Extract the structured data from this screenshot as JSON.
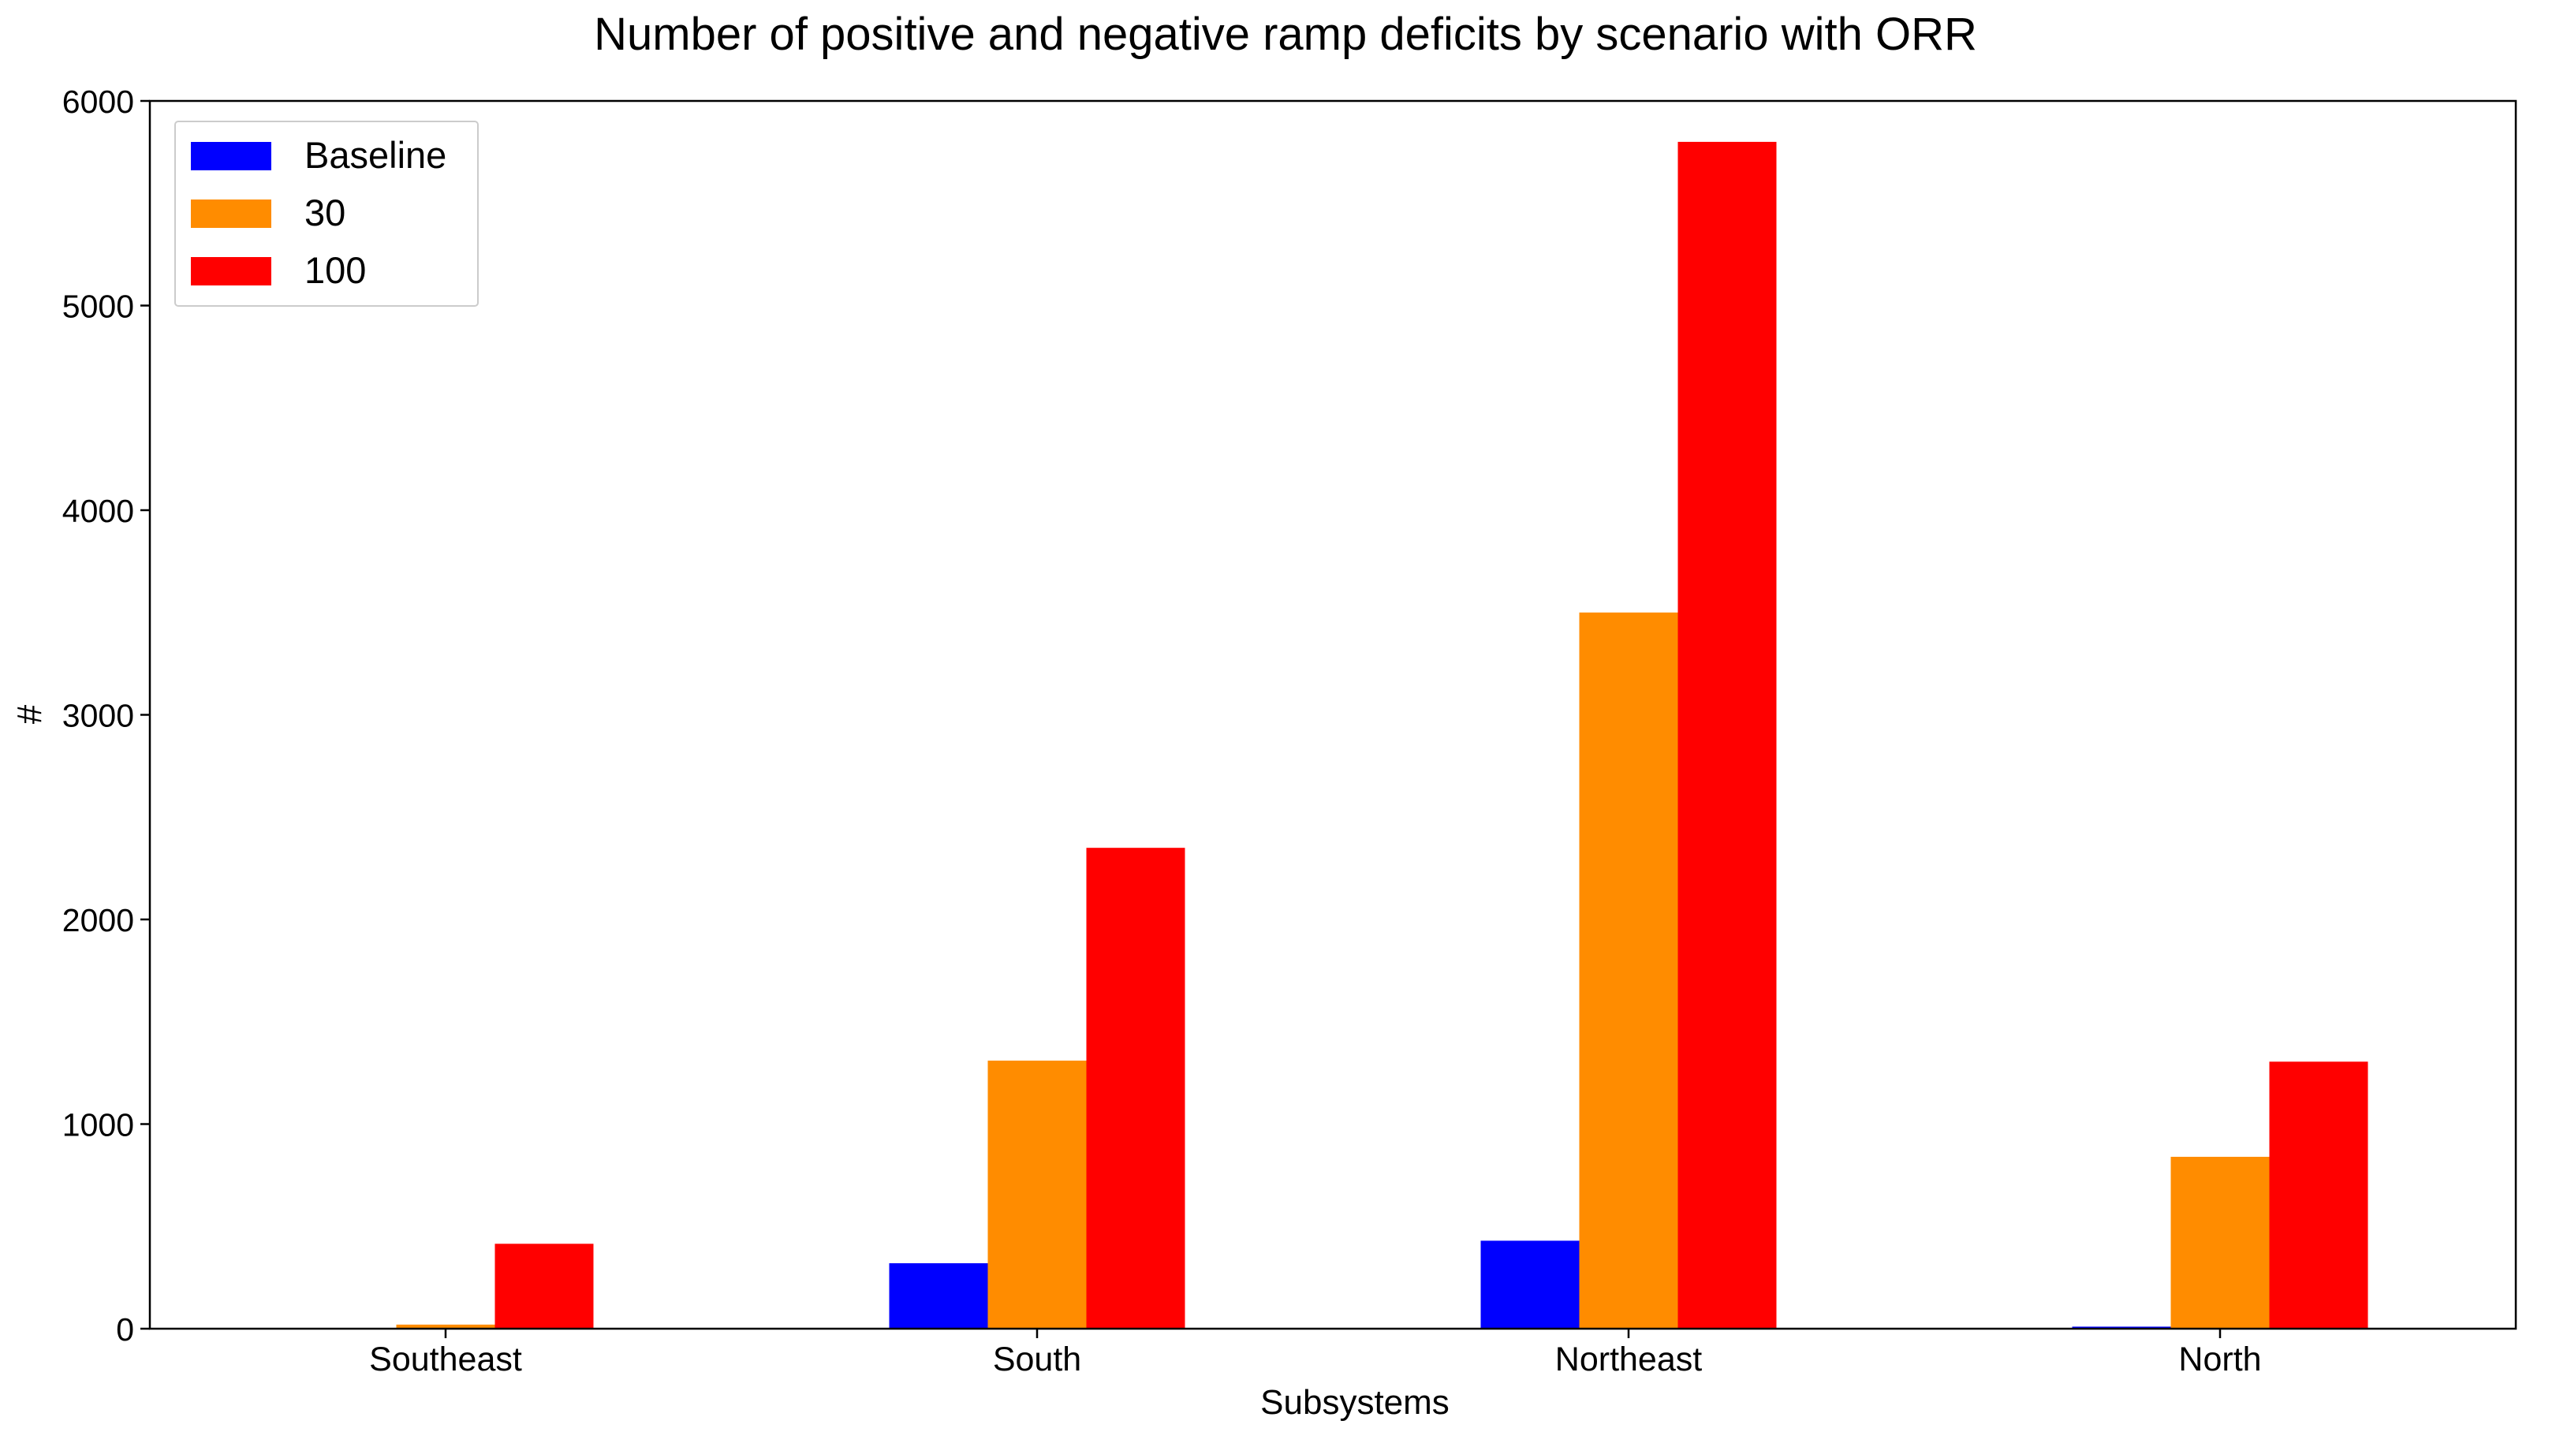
{
  "chart_data": {
    "type": "bar",
    "title": "Number of positive and negative ramp deficits by scenario with ORR",
    "xlabel": "Subsystems",
    "ylabel": "#",
    "categories": [
      "Southeast",
      "South",
      "Northeast",
      "North"
    ],
    "series": [
      {
        "name": "Baseline",
        "color": "#0000ff",
        "values": [
          0,
          320,
          430,
          10
        ]
      },
      {
        "name": "30",
        "color": "#ff8c00",
        "values": [
          20,
          1310,
          3500,
          840
        ]
      },
      {
        "name": "100",
        "color": "#ff0000",
        "values": [
          415,
          2350,
          5800,
          1305
        ]
      }
    ],
    "ylim": [
      0,
      6000
    ],
    "yticks": [
      0,
      1000,
      2000,
      3000,
      4000,
      5000,
      6000
    ],
    "grid": false,
    "legend_position": "top-left"
  }
}
